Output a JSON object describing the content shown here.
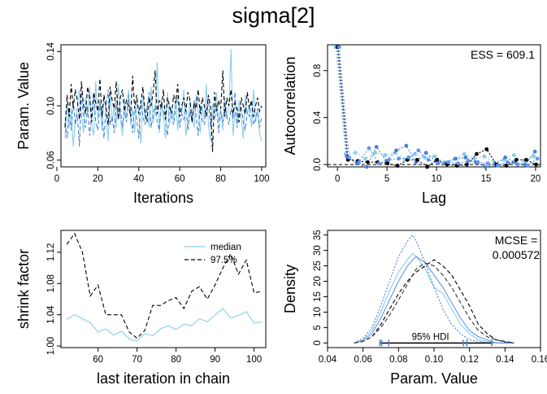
{
  "title": "sigma[2]",
  "colors": {
    "c1": "#87ceeb",
    "c2": "#4a7fd6",
    "c3": "#000000",
    "c4": "#6495ed"
  },
  "chart_data": [
    {
      "id": "trace",
      "type": "line",
      "xlabel": "Iterations",
      "ylabel": "Param. Value",
      "xlim": [
        2,
        102
      ],
      "ylim": [
        0.055,
        0.145
      ],
      "xticks": [
        0,
        20,
        40,
        60,
        80,
        100
      ],
      "yticks": [
        0.06,
        0.1,
        0.14
      ],
      "ytick_labels": [
        "0.06",
        "0.10",
        "0.14"
      ],
      "x_start": 4,
      "series": [
        {
          "color": "#87ceeb",
          "style": "solid",
          "values": [
            0.076,
            0.102,
            0.084,
            0.098,
            0.07,
            0.088,
            0.1,
            0.112,
            0.094,
            0.08,
            0.106,
            0.092,
            0.114,
            0.086,
            0.078,
            0.118,
            0.09,
            0.104,
            0.082,
            0.108,
            0.096,
            0.074,
            0.11,
            0.088,
            0.1,
            0.084,
            0.116,
            0.092,
            0.078,
            0.106,
            0.09,
            0.112,
            0.086,
            0.098,
            0.08,
            0.104,
            0.094,
            0.072,
            0.108,
            0.09,
            0.1,
            0.084,
            0.114,
            0.088,
            0.096,
            0.132,
            0.08,
            0.102,
            0.092,
            0.076,
            0.11,
            0.086,
            0.098,
            0.09,
            0.106,
            0.082,
            0.1,
            0.094,
            0.112,
            0.078,
            0.088,
            0.104,
            0.092,
            0.084,
            0.108,
            0.096,
            0.08,
            0.1,
            0.09,
            0.116,
            0.086,
            0.074,
            0.102,
            0.094,
            0.11,
            0.088,
            0.098,
            0.082,
            0.106,
            0.09,
            0.1,
            0.142,
            0.078,
            0.096,
            0.086,
            0.104,
            0.092,
            0.076,
            0.108,
            0.094,
            0.1,
            0.084,
            0.112,
            0.088,
            0.098,
            0.08,
            0.074
          ]
        },
        {
          "color": "#4a7fd6",
          "style": "dashed",
          "values": [
            0.088,
            0.076,
            0.098,
            0.082,
            0.104,
            0.086,
            0.094,
            0.07,
            0.11,
            0.092,
            0.084,
            0.1,
            0.078,
            0.096,
            0.108,
            0.088,
            0.082,
            0.102,
            0.094,
            0.076,
            0.098,
            0.112,
            0.086,
            0.092,
            0.08,
            0.104,
            0.09,
            0.098,
            0.084,
            0.096,
            0.088,
            0.108,
            0.094,
            0.08,
            0.1,
            0.09,
            0.076,
            0.104,
            0.092,
            0.086,
            0.098,
            0.11,
            0.084,
            0.094,
            0.1,
            0.088,
            0.082,
            0.104,
            0.096,
            0.09,
            0.078,
            0.1,
            0.092,
            0.086,
            0.098,
            0.108,
            0.084,
            0.094,
            0.09,
            0.1,
            0.082,
            0.096,
            0.088,
            0.104,
            0.092,
            0.078,
            0.1,
            0.09,
            0.086,
            0.098,
            0.106,
            0.084,
            0.094,
            0.09,
            0.1,
            0.08,
            0.096,
            0.088,
            0.102,
            0.092,
            0.086,
            0.098,
            0.09,
            0.11,
            0.084,
            0.094,
            0.1,
            0.088,
            0.082,
            0.096,
            0.092,
            0.104,
            0.086,
            0.09,
            0.098,
            0.084,
            0.092
          ]
        },
        {
          "color": "#000000",
          "style": "dashed",
          "values": [
            0.084,
            0.108,
            0.092,
            0.116,
            0.098,
            0.112,
            0.104,
            0.09,
            0.118,
            0.1,
            0.094,
            0.114,
            0.106,
            0.088,
            0.11,
            0.102,
            0.096,
            0.12,
            0.092,
            0.108,
            0.1,
            0.086,
            0.114,
            0.104,
            0.098,
            0.118,
            0.09,
            0.106,
            0.112,
            0.096,
            0.104,
            0.1,
            0.092,
            0.122,
            0.098,
            0.108,
            0.094,
            0.102,
            0.114,
            0.096,
            0.088,
            0.106,
            0.1,
            0.11,
            0.126,
            0.094,
            0.104,
            0.098,
            0.112,
            0.09,
            0.106,
            0.1,
            0.094,
            0.108,
            0.102,
            0.116,
            0.092,
            0.1,
            0.106,
            0.096,
            0.11,
            0.104,
            0.088,
            0.102,
            0.098,
            0.112,
            0.094,
            0.106,
            0.1,
            0.092,
            0.108,
            0.1,
            0.066,
            0.11,
            0.096,
            0.104,
            0.098,
            0.126,
            0.092,
            0.106,
            0.1,
            0.112,
            0.094,
            0.102,
            0.098,
            0.088,
            0.106,
            0.1,
            0.094,
            0.11,
            0.098,
            0.104,
            0.092,
            0.1,
            0.106,
            0.096,
            0.1
          ]
        }
      ]
    },
    {
      "id": "autocorr",
      "type": "line",
      "xlabel": "Lag",
      "ylabel": "Autocorrelation",
      "xlim": [
        -1,
        20.5
      ],
      "ylim": [
        -0.02,
        1.02
      ],
      "xticks": [
        0,
        5,
        10,
        15,
        20
      ],
      "yticks": [
        0.0,
        0.4,
        0.8
      ],
      "ytick_labels": [
        "0.0",
        "0.4",
        "0.8"
      ],
      "annotation": "ESS = 609.1",
      "series": [
        {
          "color": "#87ceeb",
          "values": [
            1.0,
            0.09,
            0.1,
            0.05,
            0.1,
            0.08,
            0.1,
            0.04,
            0.09,
            0.06,
            0.07,
            0.02,
            0.05,
            0.09,
            0.05,
            0.07,
            0.02,
            0.04,
            0.08,
            0.03,
            0.07
          ]
        },
        {
          "color": "#4a7fd6",
          "values": [
            1.0,
            0.07,
            0.01,
            -0.02,
            0.15,
            0.03,
            0.12,
            0.16,
            0.02,
            0.1,
            0.03,
            0.01,
            0.05,
            0.06,
            0.02,
            -0.02,
            0.0,
            0.06,
            0.02,
            0.0,
            0.11
          ]
        },
        {
          "color": "#000000",
          "values": [
            1.0,
            0.04,
            0.03,
            0.02,
            0.02,
            0.01,
            -0.01,
            0.04,
            0.04,
            -0.02,
            0.04,
            0.0,
            -0.01,
            0.0,
            0.09,
            0.13,
            0.0,
            -0.01,
            0.04,
            0.04,
            0.0
          ]
        },
        {
          "color": "#6495ed",
          "values": [
            1.0,
            0.06,
            0.02,
            0.14,
            0.01,
            0.04,
            0.05,
            0.06,
            0.12,
            0.04,
            0.01,
            0.02,
            0.01,
            0.03,
            0.02,
            0.01,
            -0.01,
            0.02,
            0.0,
            -0.01,
            0.05
          ]
        }
      ]
    },
    {
      "id": "shrink",
      "type": "line",
      "xlabel": "last iteration in chain",
      "ylabel": "shrink factor",
      "xlim": [
        50.5,
        103
      ],
      "ylim": [
        0.998,
        1.148
      ],
      "xticks": [
        60,
        70,
        80,
        90,
        100
      ],
      "yticks": [
        1.0,
        1.04,
        1.08,
        1.12
      ],
      "ytick_labels": [
        "1.00",
        "1.04",
        "1.08",
        "1.12"
      ],
      "legend": [
        "median",
        "97.5%"
      ],
      "legend_position": "top-right",
      "x": [
        52,
        54,
        56,
        58,
        60,
        62,
        64,
        66,
        68,
        70,
        72,
        74,
        76,
        78,
        80,
        82,
        84,
        86,
        88,
        90,
        92,
        94,
        96,
        98,
        100,
        102
      ],
      "series": [
        {
          "name": "median",
          "color": "#87ceeb",
          "style": "solid",
          "values": [
            1.034,
            1.04,
            1.035,
            1.03,
            1.018,
            1.022,
            1.014,
            1.019,
            1.009,
            1.006,
            1.016,
            1.013,
            1.022,
            1.026,
            1.021,
            1.028,
            1.026,
            1.035,
            1.031,
            1.04,
            1.048,
            1.036,
            1.039,
            1.044,
            1.029,
            1.031
          ]
        },
        {
          "name": "97.5%",
          "color": "#000000",
          "style": "dashed",
          "values": [
            1.13,
            1.144,
            1.12,
            1.064,
            1.078,
            1.04,
            1.04,
            1.04,
            1.018,
            1.01,
            1.02,
            1.052,
            1.052,
            1.058,
            1.062,
            1.048,
            1.07,
            1.076,
            1.06,
            1.078,
            1.1,
            1.118,
            1.092,
            1.11,
            1.068,
            1.07
          ]
        }
      ]
    },
    {
      "id": "density",
      "type": "line",
      "xlabel": "Param. Value",
      "ylabel": "Density",
      "xlim": [
        0.04,
        0.16
      ],
      "ylim": [
        -1.5,
        36.5
      ],
      "xticks": [
        0.04,
        0.06,
        0.08,
        0.1,
        0.12,
        0.14,
        0.16
      ],
      "xtick_labels": [
        "0.04",
        "0.06",
        "0.08",
        "0.10",
        "0.12",
        "0.14",
        "0.16"
      ],
      "yticks": [
        0,
        5,
        10,
        15,
        20,
        25,
        30,
        35
      ],
      "annotation": [
        "MCSE =",
        "0.000572"
      ],
      "hdi_label": "95% HDI",
      "x": [
        0.055,
        0.06,
        0.065,
        0.07,
        0.075,
        0.08,
        0.085,
        0.088,
        0.09,
        0.095,
        0.1,
        0.105,
        0.11,
        0.115,
        0.12,
        0.125,
        0.13,
        0.135,
        0.14,
        0.145
      ],
      "series": [
        {
          "color": "#87ceeb",
          "style": "solid",
          "values": [
            0,
            1,
            4,
            10,
            17,
            23,
            27,
            29,
            28,
            24,
            18,
            16,
            11,
            6,
            3,
            1,
            0.5,
            0,
            0,
            0
          ]
        },
        {
          "color": "#4a7fd6",
          "style": "dotted",
          "values": [
            0,
            1.5,
            5,
            12,
            20,
            28,
            33,
            35,
            33,
            26,
            18,
            11,
            6,
            3,
            1,
            0.5,
            0,
            0,
            0,
            0
          ]
        },
        {
          "color": "#000000",
          "style": "dashed",
          "values": [
            0,
            0.5,
            2,
            6,
            11,
            16,
            20,
            22,
            23,
            25,
            27,
            25,
            22,
            17,
            12,
            6,
            3,
            1,
            0.5,
            0
          ]
        },
        {
          "color": "#6495ed",
          "style": "solid",
          "values": [
            0,
            0.8,
            3,
            8,
            14,
            20,
            25,
            27,
            28,
            26,
            22,
            18,
            13,
            8,
            4,
            2,
            1,
            0,
            0,
            0
          ]
        },
        {
          "color": "#333333",
          "style": "dashed",
          "values": [
            0,
            0.5,
            2,
            5,
            9,
            14,
            19,
            22,
            24,
            26,
            25,
            22,
            18,
            13,
            8,
            4,
            2,
            1,
            0.3,
            0
          ]
        }
      ],
      "hdi_marks": [
        0.0695,
        0.0705,
        0.0745,
        0.1165,
        0.1185,
        0.1325
      ]
    }
  ]
}
